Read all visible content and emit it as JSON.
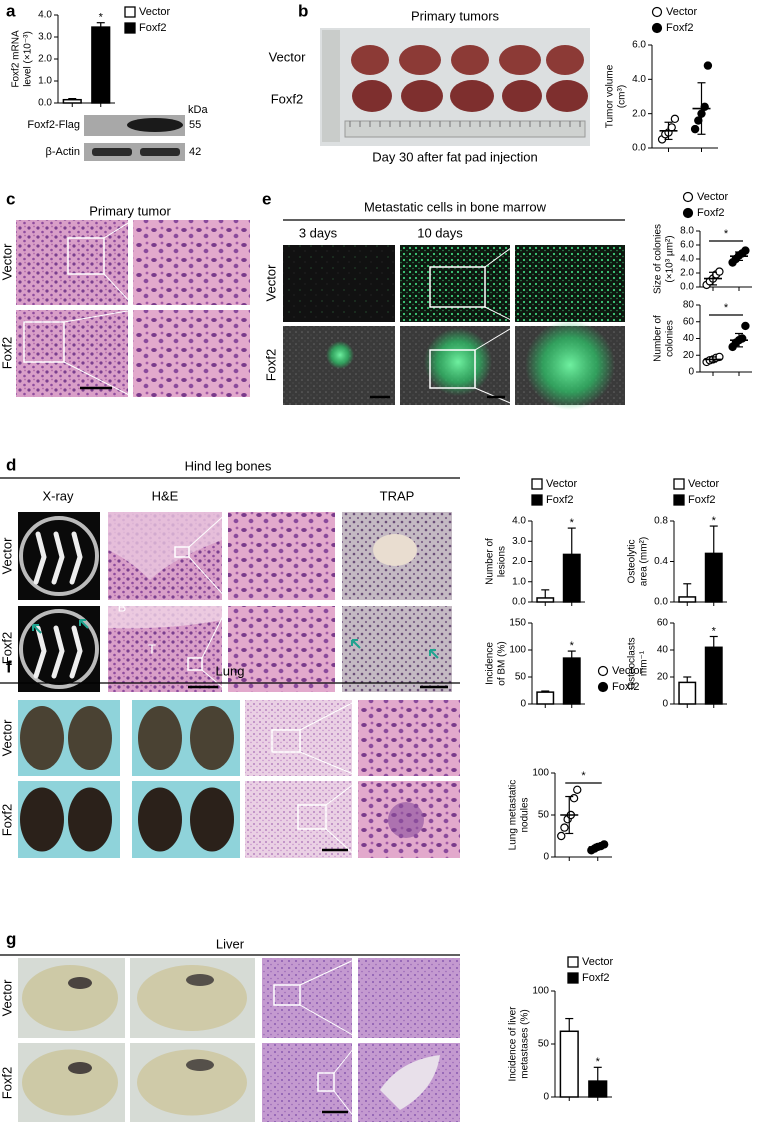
{
  "panels": {
    "a": {
      "letter": "a",
      "blot": {
        "unit": "kDa",
        "rows": [
          {
            "label": "Foxf2-Flag",
            "kda": 55
          },
          {
            "label": "β-Actin",
            "kda": 42
          }
        ]
      }
    },
    "b": {
      "letter": "b",
      "title": "Primary tumors",
      "rows": [
        "Vector",
        "Foxf2"
      ],
      "caption": "Day 30 after fat pad injection"
    },
    "c": {
      "letter": "c",
      "title": "Primary tumor",
      "rows": [
        "Vector",
        "Foxf2"
      ]
    },
    "e": {
      "letter": "e",
      "title": "Metastatic cells in bone marrow",
      "columns": [
        "3 days",
        "10 days"
      ],
      "rows": [
        "Vector",
        "Foxf2"
      ]
    },
    "d": {
      "letter": "d",
      "title": "Hind leg bones",
      "columns": [
        "X-ray",
        "H&E",
        "TRAP"
      ],
      "rows": [
        "Vector",
        "Foxf2"
      ],
      "tissue_labels": [
        "B",
        "T"
      ]
    },
    "f": {
      "letter": "f",
      "title": "Lung",
      "rows": [
        "Vector",
        "Foxf2"
      ]
    },
    "g": {
      "letter": "g",
      "title": "Liver",
      "rows": [
        "Vector",
        "Foxf2"
      ]
    }
  },
  "chart_data": [
    {
      "type": "bar",
      "ylabel": [
        "Foxf2 mRNA",
        "level (×10⁻³)"
      ],
      "legend": true,
      "series": [
        {
          "name": "Vector",
          "color": "#ffffff",
          "values": [
            0.15
          ],
          "errors": [
            0.05
          ]
        },
        {
          "name": "Foxf2",
          "color": "#000000",
          "values": [
            3.45
          ],
          "errors": [
            0.2
          ]
        }
      ],
      "ylim": [
        0,
        4
      ],
      "yticks": [
        {
          "value": 0,
          "label": "0.0"
        },
        {
          "value": 1,
          "label": "1.0"
        },
        {
          "value": 2,
          "label": "2.0"
        },
        {
          "value": 3,
          "label": "3.0"
        },
        {
          "value": 4,
          "label": "4.0"
        }
      ],
      "significance": "*",
      "bracket": false
    },
    {
      "type": "scatter",
      "ylabel": [
        "Tumor volume",
        "(cm³)"
      ],
      "legend": true,
      "series": [
        {
          "name": "Vector",
          "color": "#ffffff",
          "values": [
            0.5,
            0.8,
            0.9,
            1.2,
            1.7
          ],
          "mean": 1.0,
          "sd": 0.5
        },
        {
          "name": "Foxf2",
          "color": "#000000",
          "values": [
            1.1,
            1.6,
            2.0,
            2.4,
            4.8
          ],
          "mean": 2.3,
          "sd": 1.5
        }
      ],
      "ylim": [
        0,
        6
      ],
      "yticks": [
        {
          "value": 0,
          "label": "0.0"
        },
        {
          "value": 2,
          "label": "2.0"
        },
        {
          "value": 4,
          "label": "4.0"
        },
        {
          "value": 6,
          "label": "6.0"
        }
      ]
    },
    {
      "type": "scatter",
      "ylabel": [
        "Size of colonies",
        "(×10³ µm²)"
      ],
      "legend": true,
      "series": [
        {
          "name": "Vector",
          "color": "#ffffff",
          "values": [
            0.3,
            0.8,
            1.2,
            1.8,
            2.2
          ],
          "mean": 1.2,
          "sd": 0.9
        },
        {
          "name": "Foxf2",
          "color": "#000000",
          "values": [
            3.5,
            4.0,
            4.5,
            4.8,
            5.2
          ],
          "mean": 4.4,
          "sd": 0.6
        }
      ],
      "ylim": [
        0,
        8
      ],
      "yticks": [
        {
          "value": 0,
          "label": "0.0"
        },
        {
          "value": 2,
          "label": "2.0"
        },
        {
          "value": 4,
          "label": "4.0"
        },
        {
          "value": 6,
          "label": "6.0"
        },
        {
          "value": 8,
          "label": "8.0"
        }
      ],
      "significance": "*",
      "bracket": true
    },
    {
      "type": "scatter",
      "ylabel": [
        "Number of",
        "colonies"
      ],
      "legend": false,
      "series": [
        {
          "name": "Vector",
          "color": "#ffffff",
          "values": [
            12,
            14,
            15,
            17,
            18
          ],
          "mean": 15,
          "sd": 3
        },
        {
          "name": "Foxf2",
          "color": "#000000",
          "values": [
            30,
            35,
            38,
            40,
            55
          ],
          "mean": 38,
          "sd": 8
        }
      ],
      "ylim": [
        0,
        80
      ],
      "yticks": [
        0,
        20,
        40,
        60,
        80
      ],
      "significance": "*",
      "bracket": true
    },
    {
      "type": "bar",
      "ylabel": [
        "Number of",
        "lesions"
      ],
      "legend": true,
      "series": [
        {
          "name": "Vector",
          "color": "#ffffff",
          "values": [
            0.2
          ],
          "errors": [
            0.4
          ]
        },
        {
          "name": "Foxf2",
          "color": "#000000",
          "values": [
            2.35
          ],
          "errors": [
            1.3
          ]
        }
      ],
      "ylim": [
        0,
        4
      ],
      "yticks": [
        {
          "value": 0,
          "label": "0.0"
        },
        {
          "value": 1,
          "label": "1.0"
        },
        {
          "value": 2,
          "label": "2.0"
        },
        {
          "value": 3,
          "label": "3.0"
        },
        {
          "value": 4,
          "label": "4.0"
        }
      ],
      "significance": "*",
      "bracket": false
    },
    {
      "type": "bar",
      "ylabel": [
        "Osteolytic",
        "area (mm²)"
      ],
      "legend": true,
      "series": [
        {
          "name": "Vector",
          "color": "#ffffff",
          "values": [
            0.05
          ],
          "errors": [
            0.13
          ]
        },
        {
          "name": "Foxf2",
          "color": "#000000",
          "values": [
            0.48
          ],
          "errors": [
            0.27
          ]
        }
      ],
      "ylim": [
        0,
        0.8
      ],
      "yticks": [
        {
          "value": 0,
          "label": "0.0"
        },
        0.4,
        0.8
      ],
      "significance": "*",
      "bracket": false
    },
    {
      "type": "bar",
      "ylabel": [
        "Incidence",
        "of BM (%)"
      ],
      "legend": false,
      "series": [
        {
          "name": "Vector",
          "color": "#ffffff",
          "values": [
            22
          ],
          "errors": [
            2
          ]
        },
        {
          "name": "Foxf2",
          "color": "#000000",
          "values": [
            85
          ],
          "errors": [
            13
          ]
        }
      ],
      "ylim": [
        0,
        150
      ],
      "yticks": [
        0,
        50,
        100,
        150
      ],
      "significance": "*",
      "bracket": false
    },
    {
      "type": "bar",
      "ylabel": [
        "Osteoclasts",
        "mm⁻¹"
      ],
      "legend": false,
      "series": [
        {
          "name": "Vector",
          "color": "#ffffff",
          "values": [
            16
          ],
          "errors": [
            4
          ]
        },
        {
          "name": "Foxf2",
          "color": "#000000",
          "values": [
            42
          ],
          "errors": [
            8
          ]
        }
      ],
      "ylim": [
        0,
        60
      ],
      "yticks": [
        0,
        20,
        40,
        60
      ],
      "significance": "*",
      "bracket": false
    },
    {
      "type": "scatter",
      "ylabel": [
        "Lung metastatic",
        "nodules"
      ],
      "legend": true,
      "series": [
        {
          "name": "Vector",
          "color": "#ffffff",
          "values": [
            25,
            35,
            45,
            50,
            70,
            80
          ],
          "mean": 50,
          "sd": 22
        },
        {
          "name": "Foxf2",
          "color": "#000000",
          "values": [
            8,
            10,
            12,
            13,
            15
          ],
          "mean": 12,
          "sd": 3
        }
      ],
      "ylim": [
        0,
        100
      ],
      "yticks": [
        0,
        50,
        100
      ],
      "significance": "*",
      "bracket": true
    },
    {
      "type": "bar",
      "ylabel": [
        "Incidence of liver",
        "metastases (%)"
      ],
      "legend": true,
      "series": [
        {
          "name": "Vector",
          "color": "#ffffff",
          "values": [
            62
          ],
          "errors": [
            12
          ]
        },
        {
          "name": "Foxf2",
          "color": "#000000",
          "values": [
            15
          ],
          "errors": [
            13
          ]
        }
      ],
      "ylim": [
        0,
        100
      ],
      "yticks": [
        0,
        50,
        100
      ],
      "significance": "*",
      "bracket": false
    }
  ]
}
